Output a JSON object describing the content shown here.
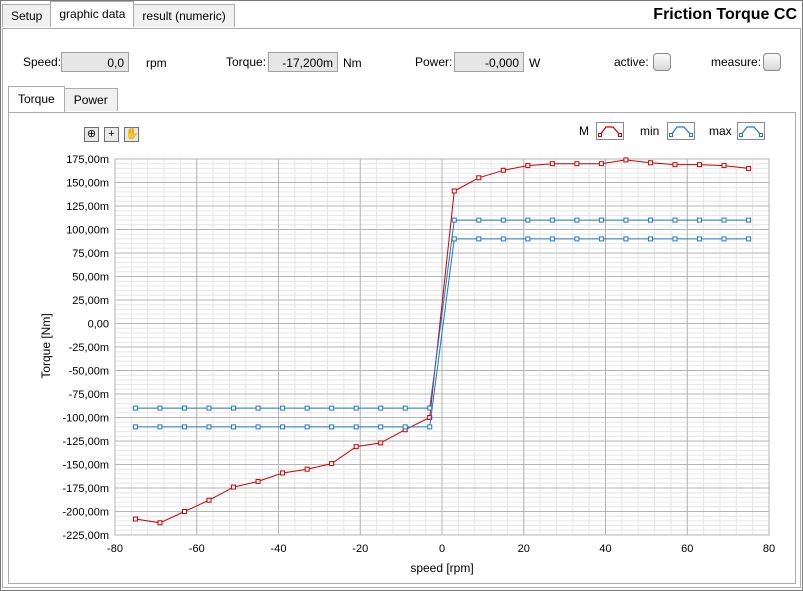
{
  "app": {
    "title": "Friction Torque CC"
  },
  "tabs": [
    {
      "label": "Setup",
      "active": false
    },
    {
      "label": "graphic data",
      "active": true
    },
    {
      "label": "result (numeric)",
      "active": false
    }
  ],
  "readouts": {
    "speed": {
      "label": "Speed:",
      "value": "0,0",
      "unit": "rpm"
    },
    "torque": {
      "label": "Torque:",
      "value": "-17,200m",
      "unit": "Nm"
    },
    "power": {
      "label": "Power:",
      "value": "-0,000",
      "unit": "W"
    },
    "active": {
      "label": "active:"
    },
    "measure": {
      "label": "measure:"
    }
  },
  "subtabs": [
    {
      "label": "Torque",
      "active": true
    },
    {
      "label": "Power",
      "active": false
    }
  ],
  "tools": [
    {
      "name": "zoom-icon",
      "glyph": "⊕"
    },
    {
      "name": "crosshair-icon",
      "glyph": "+"
    },
    {
      "name": "pan-hand-icon",
      "glyph": "✋"
    }
  ],
  "legend": [
    {
      "label": "M",
      "color": "#cc0000"
    },
    {
      "label": "min",
      "color": "#1f77c8"
    },
    {
      "label": "max",
      "color": "#1f77c8"
    }
  ],
  "chart_data": {
    "type": "line",
    "xlabel": "speed [rpm]",
    "ylabel": "Torque [Nm]",
    "xlim": [
      -80,
      80
    ],
    "ylim": [
      -225,
      175
    ],
    "xticks": [
      -80,
      -60,
      -40,
      -20,
      0,
      20,
      40,
      60,
      80
    ],
    "yticks": [
      -225,
      -200,
      -175,
      -150,
      -125,
      -100,
      -75,
      -50,
      -25,
      0,
      25,
      50,
      75,
      100,
      125,
      150,
      175
    ],
    "ytick_labels": [
      "-225,00m",
      "-200,00m",
      "-175,00m",
      "-150,00m",
      "-125,00m",
      "-100,00m",
      "-75,00m",
      "-50,00m",
      "-25,00m",
      "0,00",
      "25,00m",
      "50,00m",
      "75,00m",
      "100,00m",
      "125,00m",
      "150,00m",
      "175,00m"
    ],
    "grid": true,
    "series": [
      {
        "name": "M",
        "color": "#cc0000",
        "x": [
          -75,
          -69,
          -63,
          -57,
          -51,
          -45,
          -39,
          -33,
          -27,
          -21,
          -15,
          -9,
          -3,
          3,
          9,
          15,
          21,
          27,
          33,
          39,
          45,
          51,
          57,
          63,
          69,
          75
        ],
        "y": [
          -208,
          -212,
          -200,
          -188,
          -174,
          -168,
          -159,
          -155,
          -149,
          -131,
          -127,
          -113,
          -100,
          141,
          155,
          163,
          168,
          170,
          170,
          170,
          174,
          171,
          169,
          169,
          168,
          165
        ]
      },
      {
        "name": "min",
        "color": "#1f77c8",
        "x": [
          -75,
          -69,
          -63,
          -57,
          -51,
          -45,
          -39,
          -33,
          -27,
          -21,
          -15,
          -9,
          -3,
          3,
          9,
          15,
          21,
          27,
          33,
          39,
          45,
          51,
          57,
          63,
          69,
          75
        ],
        "y": [
          -110,
          -110,
          -110,
          -110,
          -110,
          -110,
          -110,
          -110,
          -110,
          -110,
          -110,
          -110,
          -110,
          90,
          90,
          90,
          90,
          90,
          90,
          90,
          90,
          90,
          90,
          90,
          90,
          90
        ]
      },
      {
        "name": "max",
        "color": "#1f77c8",
        "x": [
          -75,
          -69,
          -63,
          -57,
          -51,
          -45,
          -39,
          -33,
          -27,
          -21,
          -15,
          -9,
          -3,
          3,
          9,
          15,
          21,
          27,
          33,
          39,
          45,
          51,
          57,
          63,
          69,
          75
        ],
        "y": [
          -90,
          -90,
          -90,
          -90,
          -90,
          -90,
          -90,
          -90,
          -90,
          -90,
          -90,
          -90,
          -90,
          110,
          110,
          110,
          110,
          110,
          110,
          110,
          110,
          110,
          110,
          110,
          110,
          110
        ]
      }
    ]
  }
}
